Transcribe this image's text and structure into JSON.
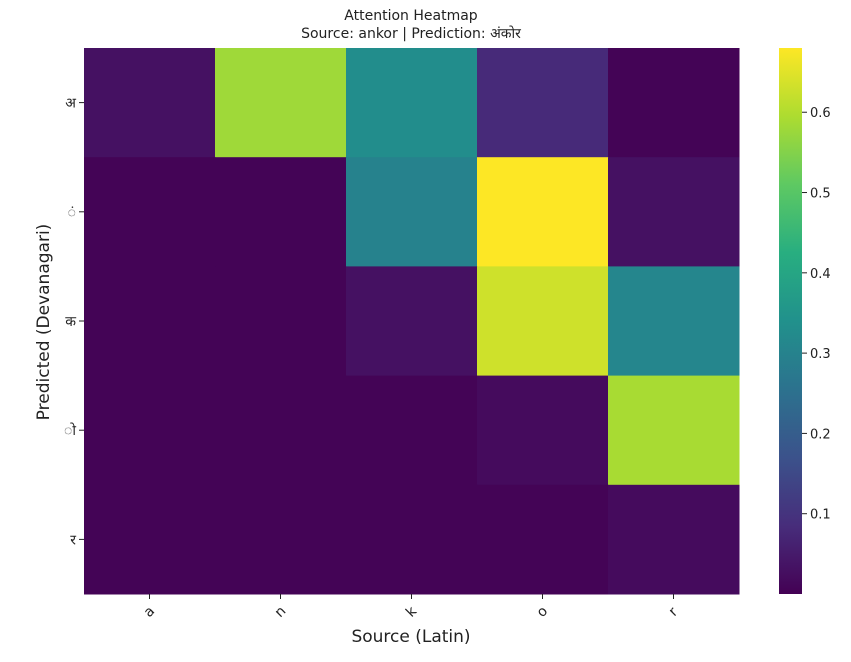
{
  "chart_data": {
    "type": "heatmap",
    "title": "Attention Heatmap",
    "subtitle": "Source: ankor | Prediction: अंकोर",
    "xlabel": "Source (Latin)",
    "ylabel": "Predicted (Devanagari)",
    "x_categories": [
      "a",
      "n",
      "k",
      "o",
      "r"
    ],
    "y_categories": [
      "अ",
      "ं",
      "क",
      "ो",
      "र"
    ],
    "values": [
      [
        0.03,
        0.58,
        0.33,
        0.08,
        0.005
      ],
      [
        0.005,
        0.005,
        0.3,
        0.68,
        0.03
      ],
      [
        0.005,
        0.005,
        0.03,
        0.63,
        0.31
      ],
      [
        0.005,
        0.005,
        0.005,
        0.02,
        0.59
      ],
      [
        0.005,
        0.005,
        0.005,
        0.005,
        0.02
      ]
    ],
    "colormap": "viridis",
    "value_range": [
      0.0,
      0.68
    ],
    "colorbar_ticks": [
      "0.1",
      "0.2",
      "0.3",
      "0.4",
      "0.5",
      "0.6"
    ],
    "colorbar_tick_values": [
      0.1,
      0.2,
      0.3,
      0.4,
      0.5,
      0.6
    ],
    "grid": false
  }
}
